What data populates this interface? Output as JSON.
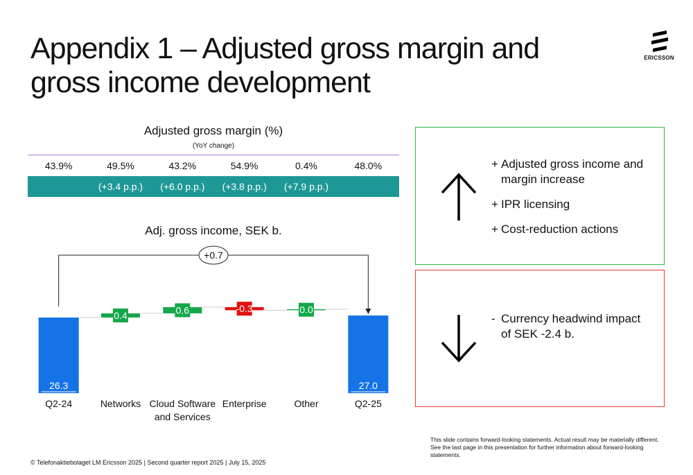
{
  "slide": {
    "title": "Appendix 1 – Adjusted gross margin and gross income development",
    "logo_text": "ERICSSON"
  },
  "margin_table": {
    "title": "Adjusted gross margin (%)",
    "subtitle": "(YoY change)",
    "values": [
      "43.9%",
      "49.5%",
      "43.2%",
      "54.9%",
      "0.4%",
      "48.0%"
    ],
    "yoy": [
      "",
      "(+3.4 p.p.)",
      "(+6.0 p.p.)",
      "(+3.8 p.p.)",
      "(+7.9 p.p.)",
      ""
    ],
    "accent_color": "#1e9896",
    "line_color": "#a97be0"
  },
  "chart_data": {
    "type": "bar",
    "subtype": "waterfall",
    "title": "Adj. gross income, SEK b.",
    "categories": [
      "Q2-24",
      "Networks",
      "Cloud Software and Services",
      "Enterprise",
      "Other",
      "Q2-25"
    ],
    "category_lines": [
      [
        "Q2-24"
      ],
      [
        "Networks"
      ],
      [
        "Cloud Software",
        "and Services"
      ],
      [
        "Enterprise"
      ],
      [
        "Other"
      ],
      [
        "Q2-25"
      ]
    ],
    "values": [
      26.3,
      0.4,
      0.6,
      -0.3,
      0.0,
      27.0
    ],
    "labels": [
      "26.3",
      "0.4",
      "0.6",
      "-0.3",
      "0.0",
      "27.0"
    ],
    "total_change_label": "+0.7",
    "colors": {
      "total": "#1473e6",
      "increase": "#14a84a",
      "decrease": "#e3110f",
      "connector": "#cccccc"
    }
  },
  "drivers": {
    "positive": {
      "items": [
        {
          "sign": "+",
          "text": "Adjusted gross income and margin increase"
        },
        {
          "sign": "+",
          "text": "IPR licensing"
        },
        {
          "sign": "+",
          "text": "Cost-reduction actions"
        }
      ],
      "border_color": "#2db544"
    },
    "negative": {
      "items": [
        {
          "sign": "-",
          "text": "Currency headwind impact of SEK -2.4 b."
        }
      ],
      "border_color": "#e53b3b"
    }
  },
  "disclaimer": "This slide contains forward-looking statements. Actual result may be materially different. See the last page in this presentation for further information about forward-looking statements.",
  "footer": "© Telefonaktiebolaget LM Ericsson 2025 | Second quarter report 2025 | July 15, 2025"
}
